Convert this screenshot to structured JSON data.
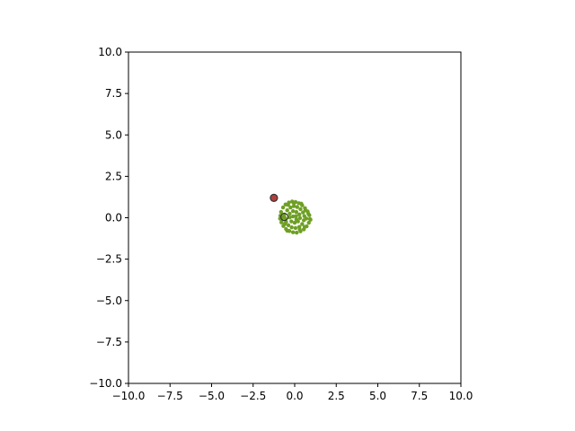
{
  "chart_data": {
    "type": "scatter",
    "title": "",
    "xlabel": "",
    "ylabel": "",
    "xlim": [
      -10,
      10
    ],
    "ylim": [
      -10,
      10
    ],
    "grid": false,
    "legend": "none",
    "xticks": [
      -10,
      -7.5,
      -5,
      -2.5,
      0,
      2.5,
      5,
      7.5,
      10
    ],
    "xtick_labels": [
      "−10.0",
      "−7.5",
      "−5.0",
      "−2.5",
      "0.0",
      "2.5",
      "5.0",
      "7.5",
      "10.0"
    ],
    "yticks": [
      -10,
      -7.5,
      -5,
      -2.5,
      0,
      2.5,
      5,
      7.5,
      10
    ],
    "ytick_labels": [
      "−10.0",
      "−7.5",
      "−5.0",
      "−2.5",
      "0.0",
      "2.5",
      "5.0",
      "7.5",
      "10.0"
    ],
    "series": [
      {
        "kind": "cluster",
        "color": "#6e9f24",
        "points": [
          [
            -0.82,
            0.35
          ],
          [
            -0.7,
            0.62
          ],
          [
            -0.55,
            0.8
          ],
          [
            -0.35,
            0.92
          ],
          [
            -0.15,
            0.98
          ],
          [
            0.05,
            0.95
          ],
          [
            0.25,
            0.88
          ],
          [
            0.45,
            0.75
          ],
          [
            0.62,
            0.58
          ],
          [
            0.78,
            0.38
          ],
          [
            0.88,
            0.15
          ],
          [
            0.92,
            -0.08
          ],
          [
            0.85,
            -0.3
          ],
          [
            0.72,
            -0.52
          ],
          [
            0.55,
            -0.7
          ],
          [
            0.35,
            -0.82
          ],
          [
            0.12,
            -0.9
          ],
          [
            -0.1,
            -0.88
          ],
          [
            -0.32,
            -0.8
          ],
          [
            -0.52,
            -0.68
          ],
          [
            -0.68,
            -0.5
          ],
          [
            -0.8,
            -0.28
          ],
          [
            -0.88,
            -0.05
          ],
          [
            -0.86,
            0.12
          ],
          [
            -0.62,
            0.2
          ],
          [
            -0.45,
            0.45
          ],
          [
            -0.25,
            0.62
          ],
          [
            -0.05,
            0.7
          ],
          [
            0.15,
            0.65
          ],
          [
            0.35,
            0.52
          ],
          [
            0.5,
            0.32
          ],
          [
            0.58,
            0.1
          ],
          [
            0.55,
            -0.15
          ],
          [
            0.45,
            -0.38
          ],
          [
            0.28,
            -0.55
          ],
          [
            0.05,
            -0.62
          ],
          [
            -0.18,
            -0.58
          ],
          [
            -0.38,
            -0.45
          ],
          [
            -0.52,
            -0.25
          ],
          [
            -0.58,
            -0.02
          ],
          [
            -0.3,
            0.25
          ],
          [
            -0.1,
            0.4
          ],
          [
            0.1,
            0.35
          ],
          [
            0.28,
            0.2
          ],
          [
            0.32,
            -0.02
          ],
          [
            0.2,
            -0.22
          ],
          [
            0.0,
            -0.3
          ],
          [
            -0.2,
            -0.22
          ],
          [
            -0.3,
            0.02
          ],
          [
            -0.1,
            0.08
          ],
          [
            0.08,
            0.1
          ],
          [
            0.1,
            -0.1
          ],
          [
            -0.72,
            0.05
          ],
          [
            -0.6,
            -0.38
          ],
          [
            0.7,
            -0.05
          ],
          [
            0.65,
            0.45
          ],
          [
            -0.4,
            0.78
          ],
          [
            0.3,
            -0.7
          ],
          [
            -0.05,
            0.88
          ],
          [
            0.82,
            0.25
          ],
          [
            -0.78,
            -0.15
          ],
          [
            0.4,
            0.85
          ],
          [
            -0.45,
            -0.78
          ],
          [
            0.6,
            -0.55
          ],
          [
            0.95,
            -0.12
          ]
        ]
      },
      {
        "kind": "marker",
        "name": "",
        "x": -1.25,
        "y": 1.2,
        "fill": "#b0413e",
        "edge": "#333333"
      },
      {
        "kind": "marker",
        "name": "",
        "x": -0.62,
        "y": 0.05,
        "fill": "none",
        "edge": "#333333"
      }
    ]
  }
}
